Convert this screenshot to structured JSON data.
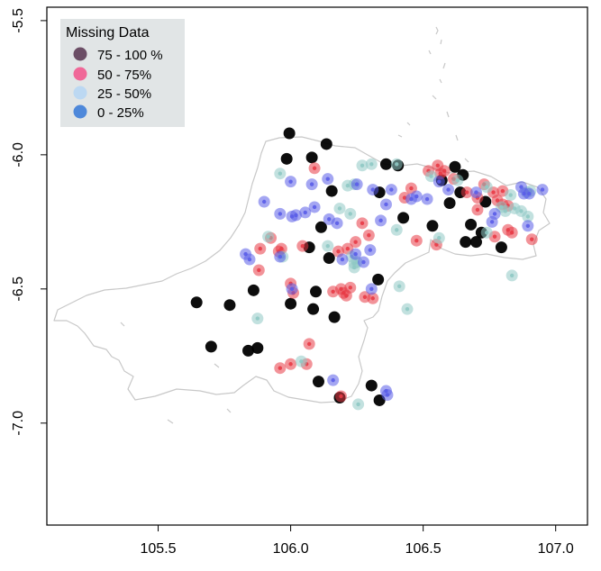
{
  "legend": {
    "title": "Missing Data",
    "items": [
      {
        "label": "75 - 100 %",
        "color": "#6B4E66"
      },
      {
        "label": "50 - 75%",
        "color": "#F06898"
      },
      {
        "label": "25 - 50%",
        "color": "#BCD8F2"
      },
      {
        "label": "0 -  25%",
        "color": "#4E88DA"
      }
    ]
  },
  "chart_data": {
    "type": "scatter",
    "title": "",
    "xlabel": "",
    "ylabel": "",
    "xlim": [
      105.08,
      107.12
    ],
    "ylim": [
      -7.38,
      -5.45
    ],
    "x_ticks": [
      105.5,
      106.0,
      106.5,
      107.0
    ],
    "x_tick_labels": [
      "105.5",
      "106.0",
      "106.5",
      "107.0"
    ],
    "y_ticks": [
      -5.5,
      -6.0,
      -6.5,
      -7.0
    ],
    "y_tick_labels": [
      "-5.5",
      "-6.0",
      "-6.5",
      "-7.0"
    ],
    "grid": false,
    "legend_position": "top-left",
    "series": [
      {
        "name": "75 - 100 %",
        "color": "#000000",
        "points": [
          [
            105.995,
            -5.92
          ],
          [
            105.985,
            -6.015
          ],
          [
            106.08,
            -6.01
          ],
          [
            106.135,
            -5.96
          ],
          [
            106.36,
            -6.035
          ],
          [
            106.405,
            -6.04
          ],
          [
            106.62,
            -6.045
          ],
          [
            106.57,
            -6.095
          ],
          [
            106.65,
            -6.075
          ],
          [
            106.64,
            -6.14
          ],
          [
            106.735,
            -6.175
          ],
          [
            106.155,
            -6.135
          ],
          [
            106.335,
            -6.14
          ],
          [
            106.6,
            -6.18
          ],
          [
            106.425,
            -6.235
          ],
          [
            106.07,
            -6.345
          ],
          [
            106.115,
            -6.27
          ],
          [
            106.535,
            -6.265
          ],
          [
            106.68,
            -6.26
          ],
          [
            106.72,
            -6.29
          ],
          [
            106.66,
            -6.325
          ],
          [
            106.7,
            -6.325
          ],
          [
            106.795,
            -6.345
          ],
          [
            106.145,
            -6.385
          ],
          [
            106.33,
            -6.465
          ],
          [
            105.86,
            -6.505
          ],
          [
            106.095,
            -6.51
          ],
          [
            105.645,
            -6.55
          ],
          [
            105.77,
            -6.56
          ],
          [
            106.0,
            -6.555
          ],
          [
            106.085,
            -6.575
          ],
          [
            106.165,
            -6.605
          ],
          [
            105.7,
            -6.715
          ],
          [
            105.875,
            -6.72
          ],
          [
            105.84,
            -6.73
          ],
          [
            106.105,
            -6.845
          ],
          [
            106.305,
            -6.86
          ],
          [
            106.185,
            -6.905
          ],
          [
            106.335,
            -6.915
          ]
        ]
      },
      {
        "name": "50 - 75%",
        "color": "#E83B46",
        "points": [
          [
            106.09,
            -6.05
          ],
          [
            106.52,
            -6.06
          ],
          [
            106.555,
            -6.04
          ],
          [
            106.565,
            -6.07
          ],
          [
            106.58,
            -6.06
          ],
          [
            106.615,
            -6.09
          ],
          [
            106.455,
            -6.125
          ],
          [
            106.43,
            -6.16
          ],
          [
            106.73,
            -6.11
          ],
          [
            106.665,
            -6.14
          ],
          [
            106.765,
            -6.14
          ],
          [
            106.705,
            -6.16
          ],
          [
            106.8,
            -6.135
          ],
          [
            106.78,
            -6.17
          ],
          [
            106.8,
            -6.185
          ],
          [
            106.82,
            -6.19
          ],
          [
            106.705,
            -6.205
          ],
          [
            106.27,
            -6.255
          ],
          [
            106.245,
            -6.325
          ],
          [
            106.295,
            -6.3
          ],
          [
            106.215,
            -6.35
          ],
          [
            106.18,
            -6.36
          ],
          [
            106.55,
            -6.335
          ],
          [
            106.475,
            -6.32
          ],
          [
            106.77,
            -6.305
          ],
          [
            106.82,
            -6.28
          ],
          [
            106.835,
            -6.29
          ],
          [
            106.91,
            -6.315
          ],
          [
            105.925,
            -6.31
          ],
          [
            105.955,
            -6.36
          ],
          [
            106.045,
            -6.34
          ],
          [
            105.885,
            -6.35
          ],
          [
            105.965,
            -6.35
          ],
          [
            105.88,
            -6.43
          ],
          [
            106.0,
            -6.48
          ],
          [
            106.01,
            -6.515
          ],
          [
            106.16,
            -6.51
          ],
          [
            106.225,
            -6.495
          ],
          [
            106.19,
            -6.5
          ],
          [
            106.2,
            -6.515
          ],
          [
            106.21,
            -6.525
          ],
          [
            106.28,
            -6.53
          ],
          [
            106.31,
            -6.535
          ],
          [
            106.07,
            -6.705
          ],
          [
            105.96,
            -6.795
          ],
          [
            106.0,
            -6.78
          ],
          [
            106.06,
            -6.78
          ],
          [
            106.19,
            -6.9
          ]
        ]
      },
      {
        "name": "25 - 50%",
        "color": "#8FC9C4",
        "points": [
          [
            105.96,
            -6.07
          ],
          [
            106.27,
            -6.04
          ],
          [
            106.305,
            -6.035
          ],
          [
            106.4,
            -6.035
          ],
          [
            106.53,
            -6.08
          ],
          [
            106.63,
            -6.095
          ],
          [
            106.74,
            -6.12
          ],
          [
            106.83,
            -6.15
          ],
          [
            106.215,
            -6.115
          ],
          [
            106.24,
            -6.11
          ],
          [
            106.185,
            -6.2
          ],
          [
            106.225,
            -6.22
          ],
          [
            106.795,
            -6.195
          ],
          [
            106.81,
            -6.21
          ],
          [
            106.845,
            -6.2
          ],
          [
            106.87,
            -6.21
          ],
          [
            106.89,
            -6.14
          ],
          [
            106.905,
            -6.135
          ],
          [
            106.895,
            -6.23
          ],
          [
            106.74,
            -6.29
          ],
          [
            106.4,
            -6.28
          ],
          [
            106.56,
            -6.31
          ],
          [
            106.14,
            -6.34
          ],
          [
            106.23,
            -6.38
          ],
          [
            106.24,
            -6.405
          ],
          [
            106.25,
            -6.4
          ],
          [
            106.24,
            -6.42
          ],
          [
            105.915,
            -6.305
          ],
          [
            105.97,
            -6.38
          ],
          [
            106.41,
            -6.49
          ],
          [
            106.44,
            -6.575
          ],
          [
            105.875,
            -6.61
          ],
          [
            106.04,
            -6.77
          ],
          [
            106.255,
            -6.93
          ],
          [
            106.835,
            -6.45
          ]
        ]
      },
      {
        "name": "0 -  25%",
        "color": "#5A5DE8",
        "points": [
          [
            106.25,
            -6.11
          ],
          [
            106.31,
            -6.13
          ],
          [
            106.38,
            -6.13
          ],
          [
            106.475,
            -6.155
          ],
          [
            106.515,
            -6.165
          ],
          [
            106.56,
            -6.1
          ],
          [
            106.595,
            -6.13
          ],
          [
            106.87,
            -6.12
          ],
          [
            106.95,
            -6.13
          ],
          [
            106.88,
            -6.145
          ],
          [
            106.9,
            -6.145
          ],
          [
            106.7,
            -6.14
          ],
          [
            106.77,
            -6.22
          ],
          [
            106.76,
            -6.25
          ],
          [
            106.895,
            -6.265
          ],
          [
            106.0,
            -6.1
          ],
          [
            106.08,
            -6.11
          ],
          [
            106.14,
            -6.09
          ],
          [
            106.09,
            -6.195
          ],
          [
            106.055,
            -6.215
          ],
          [
            106.02,
            -6.225
          ],
          [
            106.005,
            -6.23
          ],
          [
            106.175,
            -6.255
          ],
          [
            106.145,
            -6.24
          ],
          [
            105.9,
            -6.175
          ],
          [
            105.96,
            -6.22
          ],
          [
            106.36,
            -6.185
          ],
          [
            106.34,
            -6.245
          ],
          [
            106.455,
            -6.165
          ],
          [
            106.3,
            -6.355
          ],
          [
            106.245,
            -6.37
          ],
          [
            106.275,
            -6.4
          ],
          [
            106.195,
            -6.39
          ],
          [
            105.83,
            -6.37
          ],
          [
            105.845,
            -6.39
          ],
          [
            105.96,
            -6.38
          ],
          [
            106.005,
            -6.5
          ],
          [
            106.305,
            -6.5
          ],
          [
            106.16,
            -6.84
          ],
          [
            106.36,
            -6.88
          ],
          [
            106.365,
            -6.895
          ]
        ]
      }
    ]
  }
}
